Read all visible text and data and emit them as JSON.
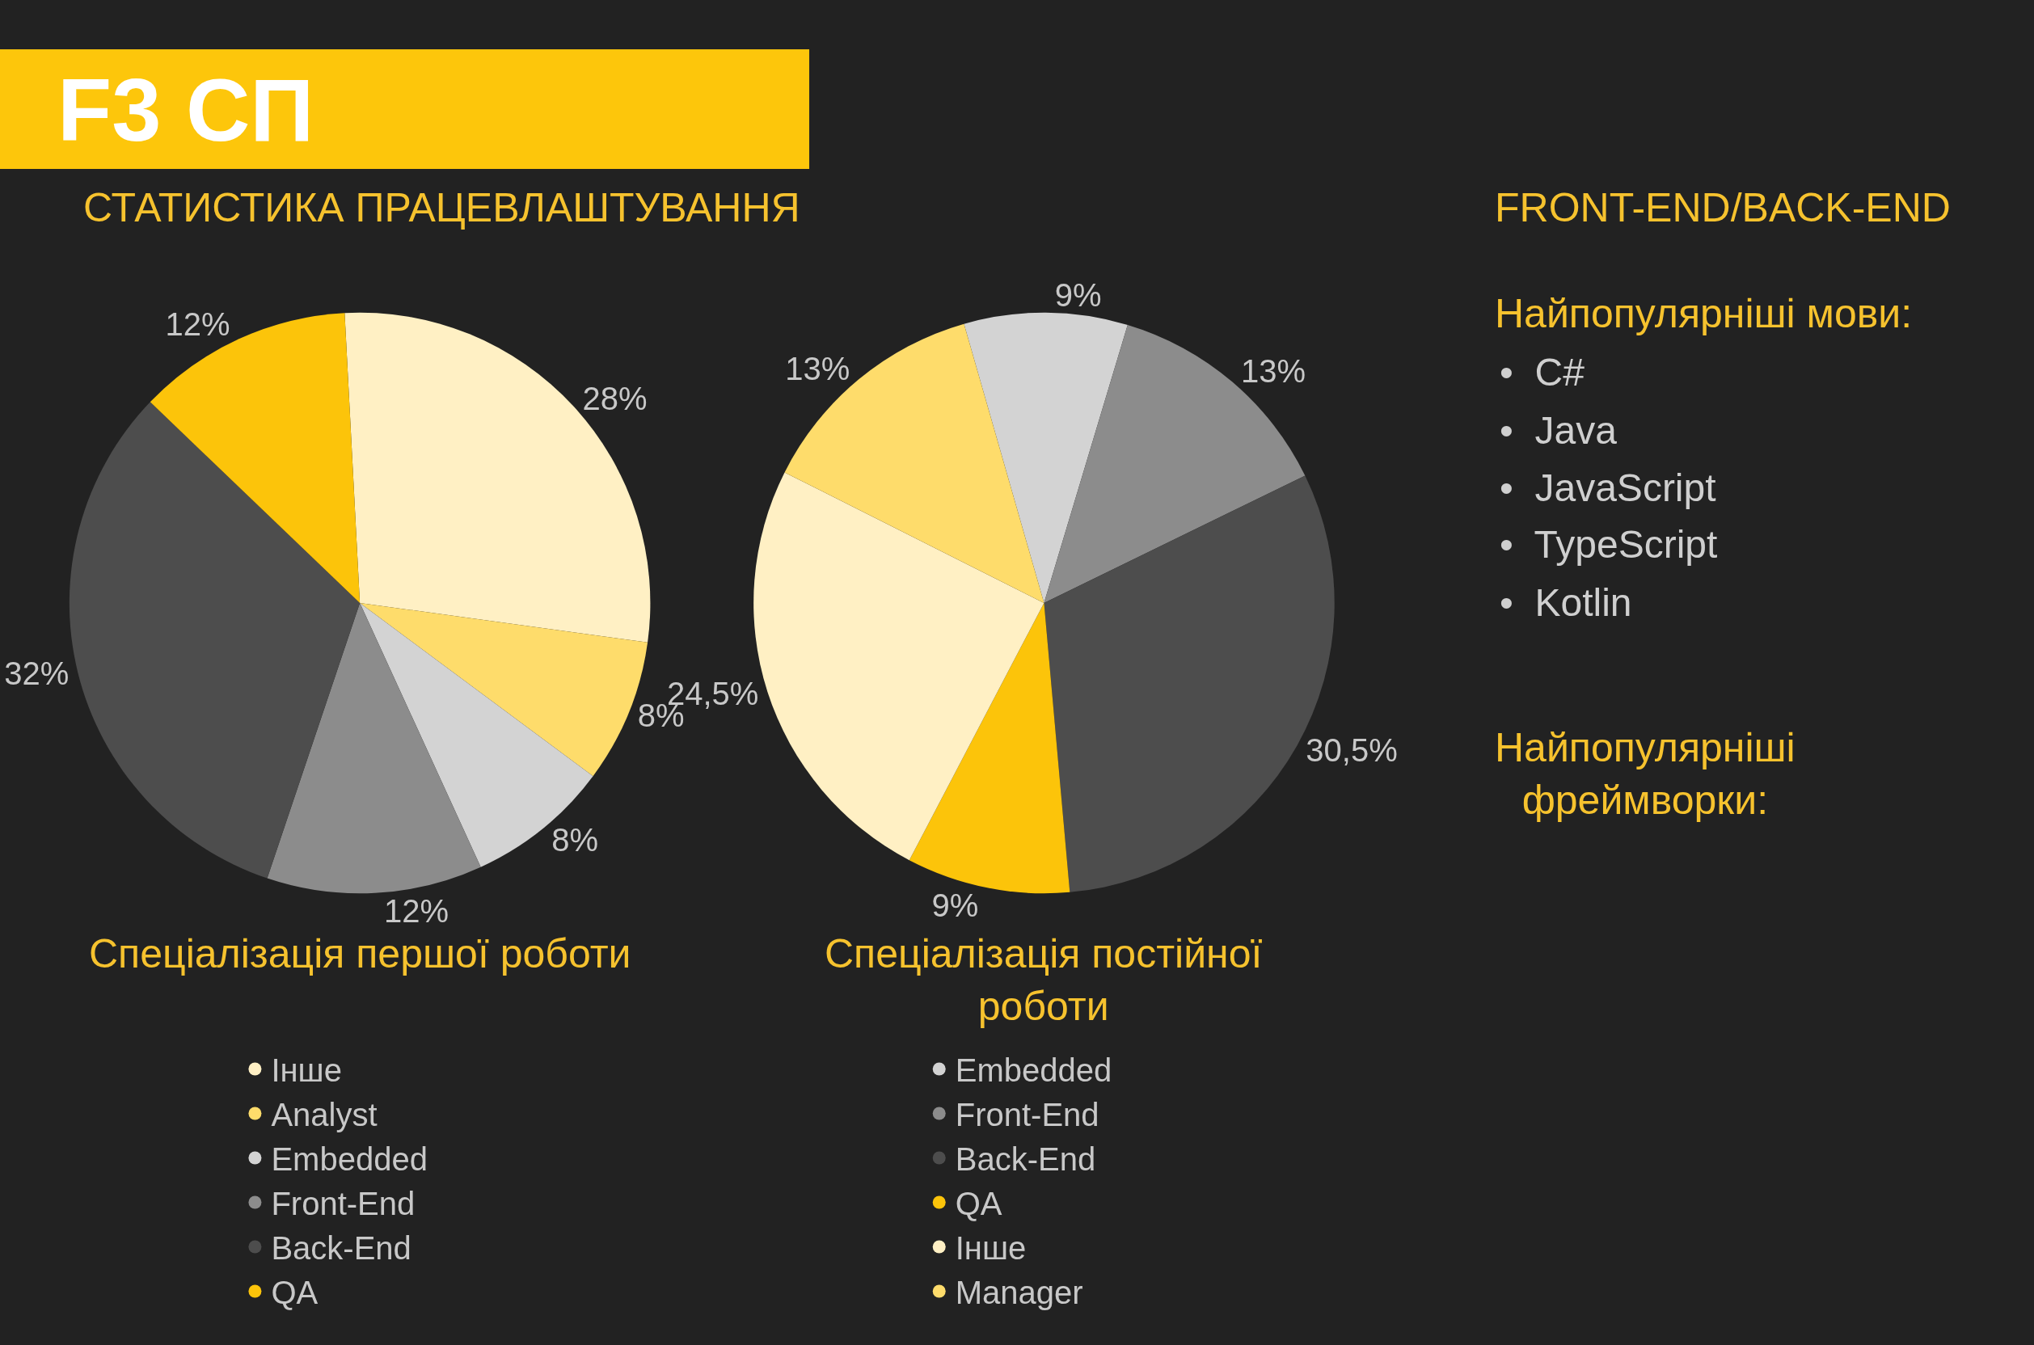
{
  "chart_data": [
    {
      "type": "pie",
      "title": "Спеціалізація першої роботи",
      "annotations": [
        "F3 СП",
        "СТАТИСТИКА ПРАЦЕВЛАШТУВАННЯ"
      ],
      "legend": "bottom",
      "categories": [
        "Інше",
        "Analyst",
        "Embedded",
        "Front-End",
        "Back-End",
        "QA"
      ],
      "values": [
        28,
        8,
        8,
        12,
        32,
        12
      ],
      "value_labels": [
        "28%",
        "8%",
        "8%",
        "12%",
        "32%",
        "12%"
      ],
      "colors": [
        "#fff0c4",
        "#fedc6b",
        "#d3d3d3",
        "#8c8c8c",
        "#4d4d4d",
        "#fcc40a"
      ]
    },
    {
      "type": "pie",
      "title": "Спеціалізація постійної роботи",
      "legend": "bottom",
      "categories": [
        "Embedded",
        "Front-End",
        "Back-End",
        "QA",
        "Інше",
        "Manager"
      ],
      "values": [
        9,
        13,
        30.5,
        9,
        24.5,
        13
      ],
      "value_labels": [
        "9%",
        "13%",
        "30,5%",
        "9%",
        "24,5%",
        "13%"
      ],
      "colors": [
        "#d3d3d3",
        "#8c8c8c",
        "#4d4d4d",
        "#fcc40a",
        "#fff0c4",
        "#fedc6b"
      ]
    },
    {
      "type": "other",
      "title": "FRONT-END/BACK-END",
      "subtitle": "Найпопулярніші мови:",
      "categories": [
        "•  C#",
        "•  Java",
        "•  JavaScript",
        "•  TypeScript",
        "•  Kotlin"
      ],
      "annotations": [
        "Найпопулярніші фреймворки:"
      ]
    }
  ]
}
